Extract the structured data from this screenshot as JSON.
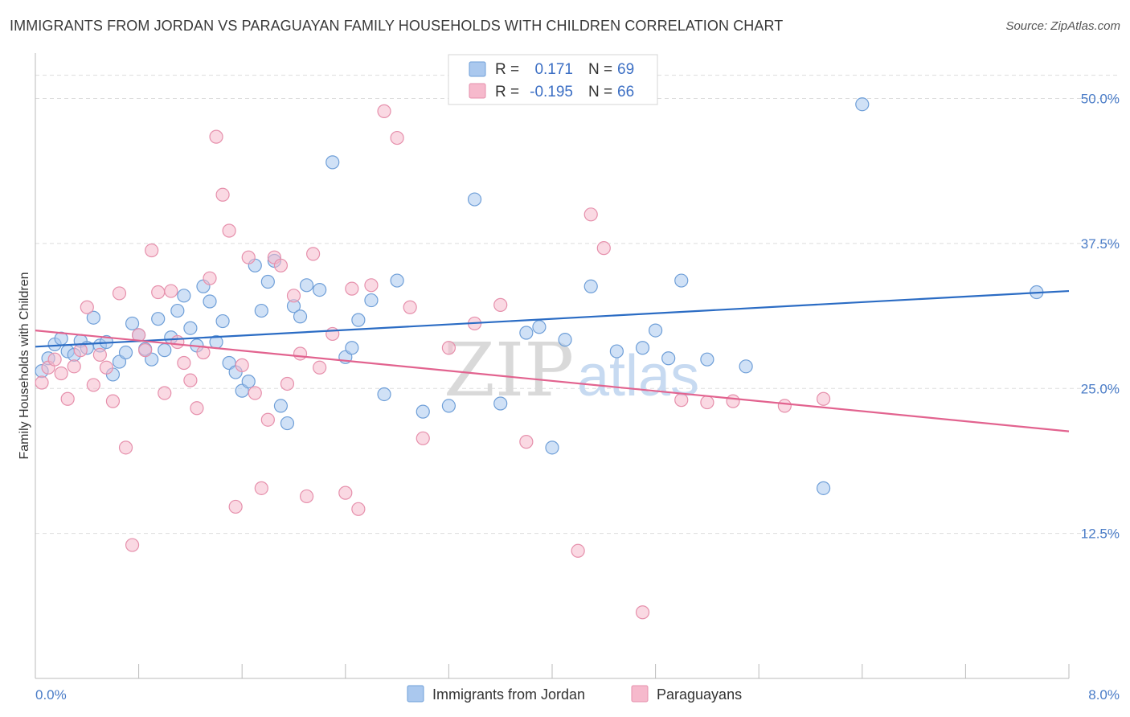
{
  "title": "IMMIGRANTS FROM JORDAN VS PARAGUAYAN FAMILY HOUSEHOLDS WITH CHILDREN CORRELATION CHART",
  "source": "Source: ZipAtlas.com",
  "watermark": {
    "zip": "ZIP",
    "atlas": "atlas"
  },
  "colors": {
    "jordan_fill": "#aac8ee",
    "jordan_stroke": "#6f9fd8",
    "jordan_line": "#2b6cc4",
    "paraguay_fill": "#f6b9cc",
    "paraguay_stroke": "#e690ac",
    "paraguay_line": "#e2638f",
    "grid": "#dddddd",
    "tick_text": "#4a7cc7"
  },
  "legend": {
    "rows": [
      {
        "r_label": "R =",
        "r_value": "0.171",
        "n_label": "N =",
        "n_value": "69"
      },
      {
        "r_label": "R =",
        "r_value": "-0.195",
        "n_label": "N =",
        "n_value": "66"
      }
    ],
    "bottom": [
      "Immigrants from Jordan",
      "Paraguayans"
    ]
  },
  "chart_data": {
    "type": "scatter",
    "xlabel": "",
    "ylabel": "Family Households with Children",
    "xlim": [
      0,
      8
    ],
    "ylim": [
      0,
      53.5
    ],
    "x_tick_labels": {
      "min": "0.0%",
      "max": "8.0%"
    },
    "y_ticks": [
      {
        "value": 12.5,
        "label": "12.5%"
      },
      {
        "value": 25.0,
        "label": "25.0%"
      },
      {
        "value": 37.5,
        "label": "37.5%"
      },
      {
        "value": 50.0,
        "label": "50.0%"
      }
    ],
    "grid": true,
    "legend_position": "top-center",
    "series": [
      {
        "name": "Immigrants from Jordan",
        "trend": {
          "x": [
            0,
            8
          ],
          "y": [
            28.6,
            33.4
          ]
        },
        "points": [
          [
            0.05,
            26.5
          ],
          [
            0.1,
            27.6
          ],
          [
            0.15,
            28.8
          ],
          [
            0.2,
            29.3
          ],
          [
            0.25,
            28.2
          ],
          [
            0.3,
            27.9
          ],
          [
            0.35,
            29.1
          ],
          [
            0.4,
            28.5
          ],
          [
            0.45,
            31.1
          ],
          [
            0.5,
            28.7
          ],
          [
            0.55,
            29.0
          ],
          [
            0.6,
            26.2
          ],
          [
            0.65,
            27.3
          ],
          [
            0.7,
            28.1
          ],
          [
            0.75,
            30.6
          ],
          [
            0.8,
            29.6
          ],
          [
            0.85,
            28.4
          ],
          [
            0.9,
            27.5
          ],
          [
            0.95,
            31.0
          ],
          [
            1.0,
            28.3
          ],
          [
            1.05,
            29.4
          ],
          [
            1.1,
            31.7
          ],
          [
            1.15,
            33.0
          ],
          [
            1.2,
            30.2
          ],
          [
            1.25,
            28.7
          ],
          [
            1.3,
            33.8
          ],
          [
            1.35,
            32.5
          ],
          [
            1.4,
            29.0
          ],
          [
            1.45,
            30.8
          ],
          [
            1.5,
            27.2
          ],
          [
            1.55,
            26.4
          ],
          [
            1.6,
            24.8
          ],
          [
            1.65,
            25.6
          ],
          [
            1.7,
            35.6
          ],
          [
            1.75,
            31.7
          ],
          [
            1.8,
            34.2
          ],
          [
            1.85,
            36.0
          ],
          [
            1.9,
            23.5
          ],
          [
            1.95,
            22.0
          ],
          [
            2.0,
            32.1
          ],
          [
            2.05,
            31.2
          ],
          [
            2.1,
            33.9
          ],
          [
            2.2,
            33.5
          ],
          [
            2.3,
            44.5
          ],
          [
            2.4,
            27.7
          ],
          [
            2.45,
            28.5
          ],
          [
            2.5,
            30.9
          ],
          [
            2.6,
            32.6
          ],
          [
            2.7,
            24.5
          ],
          [
            2.8,
            34.3
          ],
          [
            3.0,
            23.0
          ],
          [
            3.2,
            23.5
          ],
          [
            3.4,
            41.3
          ],
          [
            3.6,
            23.7
          ],
          [
            3.8,
            29.8
          ],
          [
            3.9,
            30.3
          ],
          [
            4.0,
            19.9
          ],
          [
            4.1,
            29.2
          ],
          [
            4.3,
            33.8
          ],
          [
            4.5,
            28.2
          ],
          [
            4.7,
            28.5
          ],
          [
            4.8,
            30.0
          ],
          [
            4.9,
            27.6
          ],
          [
            5.0,
            34.3
          ],
          [
            5.2,
            27.5
          ],
          [
            5.5,
            26.9
          ],
          [
            6.1,
            16.4
          ],
          [
            6.4,
            49.5
          ],
          [
            7.75,
            33.3
          ]
        ]
      },
      {
        "name": "Paraguayans",
        "trend": {
          "x": [
            0,
            8
          ],
          "y": [
            30.0,
            21.3
          ]
        },
        "points": [
          [
            0.05,
            25.5
          ],
          [
            0.1,
            26.8
          ],
          [
            0.15,
            27.5
          ],
          [
            0.2,
            26.3
          ],
          [
            0.25,
            24.1
          ],
          [
            0.3,
            26.9
          ],
          [
            0.35,
            28.3
          ],
          [
            0.4,
            32.0
          ],
          [
            0.45,
            25.3
          ],
          [
            0.5,
            27.9
          ],
          [
            0.55,
            26.8
          ],
          [
            0.6,
            23.9
          ],
          [
            0.65,
            33.2
          ],
          [
            0.7,
            19.9
          ],
          [
            0.75,
            11.5
          ],
          [
            0.8,
            29.6
          ],
          [
            0.85,
            28.3
          ],
          [
            0.9,
            36.9
          ],
          [
            0.95,
            33.3
          ],
          [
            1.0,
            24.6
          ],
          [
            1.05,
            33.4
          ],
          [
            1.1,
            29.0
          ],
          [
            1.15,
            27.2
          ],
          [
            1.2,
            25.7
          ],
          [
            1.25,
            23.3
          ],
          [
            1.3,
            28.1
          ],
          [
            1.35,
            34.5
          ],
          [
            1.4,
            46.7
          ],
          [
            1.45,
            41.7
          ],
          [
            1.5,
            38.6
          ],
          [
            1.55,
            14.8
          ],
          [
            1.6,
            27.0
          ],
          [
            1.65,
            36.3
          ],
          [
            1.7,
            24.6
          ],
          [
            1.75,
            16.4
          ],
          [
            1.8,
            22.3
          ],
          [
            1.85,
            36.3
          ],
          [
            1.9,
            35.6
          ],
          [
            1.95,
            25.4
          ],
          [
            2.0,
            33.0
          ],
          [
            2.05,
            28.0
          ],
          [
            2.1,
            15.7
          ],
          [
            2.15,
            36.6
          ],
          [
            2.2,
            26.8
          ],
          [
            2.3,
            29.7
          ],
          [
            2.4,
            16.0
          ],
          [
            2.45,
            33.6
          ],
          [
            2.5,
            14.6
          ],
          [
            2.6,
            33.9
          ],
          [
            2.7,
            48.9
          ],
          [
            2.8,
            46.6
          ],
          [
            2.9,
            32.0
          ],
          [
            3.0,
            20.7
          ],
          [
            3.2,
            28.5
          ],
          [
            3.4,
            30.6
          ],
          [
            3.6,
            32.2
          ],
          [
            3.8,
            20.4
          ],
          [
            4.2,
            11.0
          ],
          [
            4.3,
            40.0
          ],
          [
            4.4,
            37.1
          ],
          [
            4.7,
            5.7
          ],
          [
            5.0,
            24.0
          ],
          [
            5.2,
            23.8
          ],
          [
            5.4,
            23.9
          ],
          [
            5.8,
            23.5
          ],
          [
            6.1,
            24.1
          ]
        ]
      }
    ]
  }
}
